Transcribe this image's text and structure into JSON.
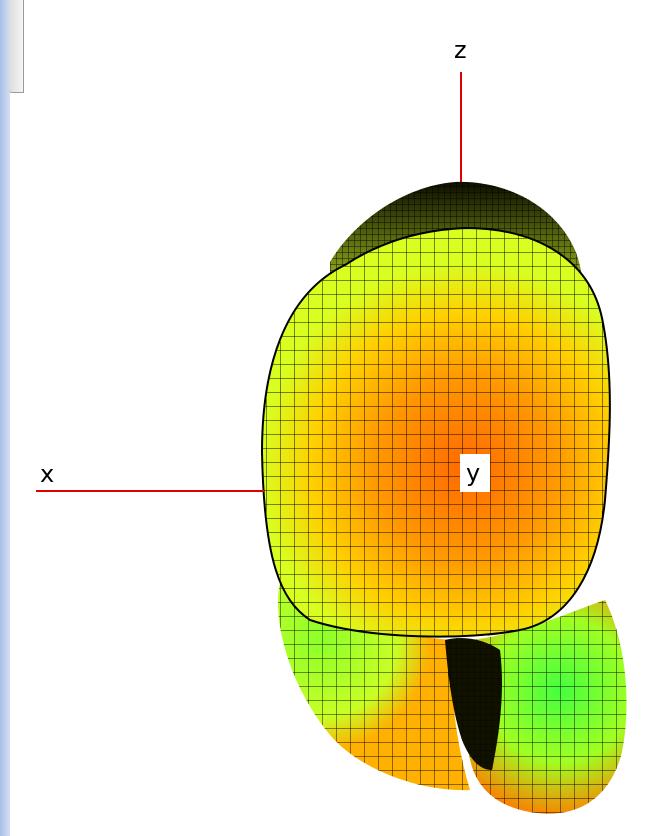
{
  "plot": {
    "axes": {
      "x_label": "x",
      "y_label": "y",
      "z_label": "z",
      "axis_color": "#e00000"
    },
    "surface": {
      "colormap": [
        "#ff6a00",
        "#ff9a00",
        "#ffd000",
        "#d6ff1f",
        "#54ff3a"
      ],
      "mesh_color": "#000000"
    }
  }
}
